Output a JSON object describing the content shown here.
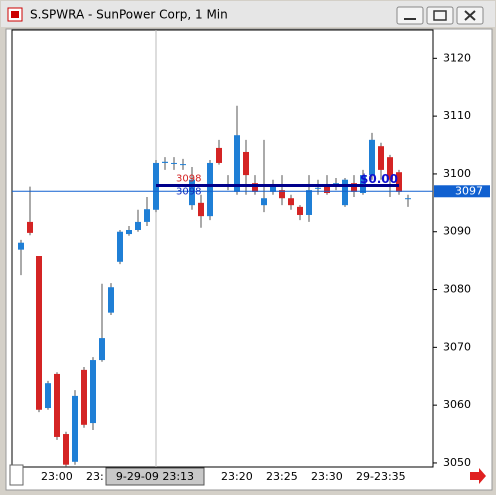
{
  "window_title": "S.SPWRA - SunPower Corp, 1 Min",
  "chart_data": {
    "type": "candlestick",
    "x": [
      "22:58",
      "22:59",
      "23:00",
      "23:01",
      "23:02",
      "23:03",
      "23:04",
      "23:05",
      "23:06",
      "23:07",
      "23:08",
      "23:09",
      "23:10",
      "23:11",
      "23:12",
      "23:13",
      "23:14",
      "23:15",
      "23:16",
      "23:17",
      "23:18",
      "23:19",
      "23:20",
      "23:21",
      "23:22",
      "23:23",
      "23:24",
      "23:25",
      "23:26",
      "23:27",
      "23:28",
      "23:29",
      "23:30",
      "23:31",
      "23:32",
      "23:33",
      "23:34",
      "23:35",
      "23:36",
      "23:37",
      "23:38",
      "23:39",
      "23:40",
      "23:41"
    ],
    "open": [
      3086.9,
      3091.7,
      3085.8,
      3059.5,
      3065.4,
      3055.0,
      3050.2,
      3066.1,
      3056.9,
      3067.8,
      3076.0,
      3084.8,
      3089.6,
      3090.3,
      3091.7,
      3093.8,
      3101.9,
      3101.9,
      3101.7,
      3094.6,
      3095.0,
      3092.7,
      3104.5,
      3098.1,
      3096.9,
      3103.8,
      3098.4,
      3094.6,
      3096.9,
      3097.2,
      3095.8,
      3094.3,
      3092.9,
      3097.6,
      3098.1,
      3098.4,
      3094.6,
      3098.4,
      3096.7,
      3099.8,
      3104.8,
      3102.9,
      3100.3,
      3095.8
    ],
    "high": [
      3088.6,
      3097.8,
      3085.8,
      3064.2,
      3065.7,
      3055.4,
      3062.6,
      3066.6,
      3068.3,
      3081.0,
      3081.1,
      3090.3,
      3091.0,
      3093.8,
      3096.0,
      3102.4,
      3102.9,
      3102.9,
      3102.6,
      3101.2,
      3096.4,
      3102.4,
      3105.9,
      3099.8,
      3111.8,
      3105.9,
      3099.8,
      3105.9,
      3099.0,
      3099.8,
      3096.4,
      3094.6,
      3099.8,
      3099.0,
      3099.8,
      3099.3,
      3099.3,
      3099.8,
      3100.7,
      3107.1,
      3105.4,
      3103.3,
      3100.7,
      3096.4
    ],
    "low": [
      3082.5,
      3089.4,
      3058.8,
      3059.2,
      3054.0,
      3049.3,
      3049.7,
      3056.1,
      3055.7,
      3067.5,
      3075.6,
      3084.4,
      3089.3,
      3090.0,
      3091.0,
      3093.4,
      3100.7,
      3100.7,
      3100.7,
      3093.8,
      3090.7,
      3092.0,
      3101.6,
      3097.2,
      3096.4,
      3096.4,
      3096.4,
      3093.4,
      3096.4,
      3094.6,
      3093.8,
      3092.0,
      3091.7,
      3096.4,
      3096.4,
      3097.2,
      3094.3,
      3096.0,
      3096.4,
      3099.0,
      3099.0,
      3096.0,
      3096.4,
      3094.3
    ],
    "close": [
      3088.1,
      3089.8,
      3059.2,
      3063.8,
      3054.5,
      3049.7,
      3061.6,
      3056.6,
      3067.8,
      3071.6,
      3080.4,
      3090.0,
      3090.3,
      3091.7,
      3093.9,
      3101.9,
      3102.1,
      3101.9,
      3101.7,
      3099.0,
      3092.7,
      3101.9,
      3101.9,
      3098.1,
      3106.7,
      3099.8,
      3096.9,
      3095.8,
      3098.1,
      3095.8,
      3094.6,
      3092.9,
      3097.2,
      3097.6,
      3096.7,
      3098.4,
      3099.0,
      3096.9,
      3099.8,
      3105.9,
      3100.7,
      3099.0,
      3096.9,
      3095.8
    ],
    "up_color": "#1f7fd6",
    "down_color": "#d42424",
    "ylim": [
      3049.3,
      3124.9
    ],
    "yticks": [
      3050,
      3060,
      3070,
      3080,
      3090,
      3100,
      3110,
      3120
    ],
    "xticks": [
      {
        "value": "23:00",
        "label": "23:00"
      },
      {
        "value": "23:05",
        "label": "23:"
      },
      {
        "value": "23:15",
        "label": "5"
      },
      {
        "value": "23:20",
        "label": "23:20"
      },
      {
        "value": "23:25",
        "label": "23:25"
      },
      {
        "value": "23:30",
        "label": "23:30"
      },
      {
        "value": "23:35",
        "label": "29-23:35"
      }
    ],
    "crosshair": {
      "x": "23:13",
      "label": "9-29-09 23:13"
    },
    "last_price": 3097,
    "order_line": {
      "value": 3098,
      "labels": [
        3098,
        3098
      ],
      "pnl": "$0.00"
    }
  }
}
